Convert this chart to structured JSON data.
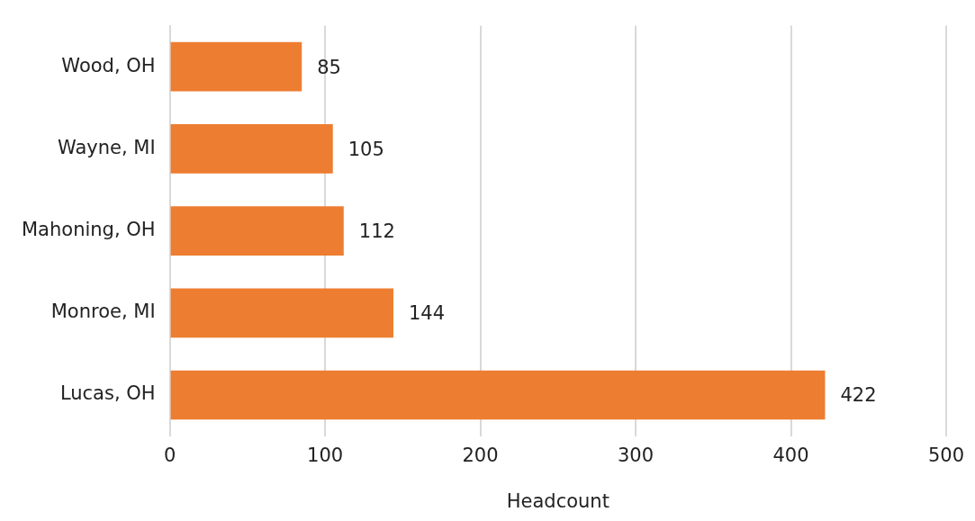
{
  "chart_data": {
    "type": "bar",
    "orientation": "horizontal",
    "xlabel": "Headcount",
    "categories": [
      "Wood, OH",
      "Wayne, MI",
      "Mahoning, OH",
      "Monroe, MI",
      "Lucas, OH"
    ],
    "values": [
      85,
      105,
      112,
      144,
      422
    ],
    "color": "#ed7d31",
    "xlim": [
      0,
      500
    ],
    "xticks": [
      0,
      100,
      200,
      300,
      400,
      500
    ],
    "grid": "x",
    "data_labels": true
  }
}
